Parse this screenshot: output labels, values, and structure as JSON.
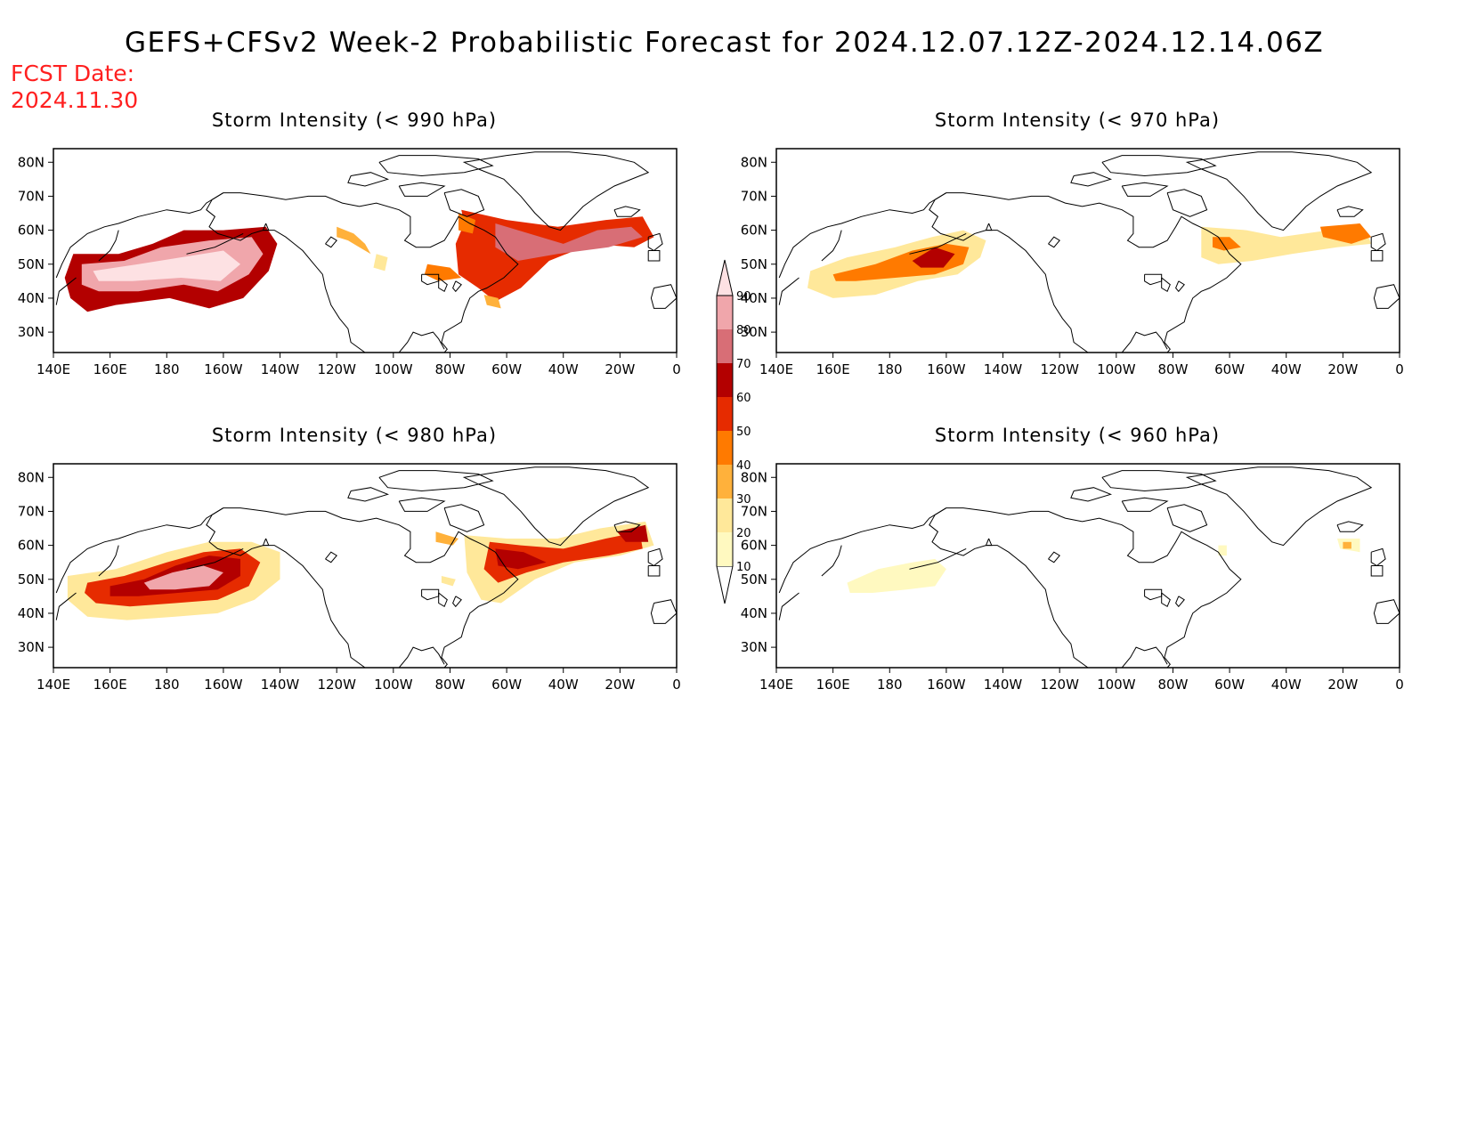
{
  "header": {
    "title": "GEFS+CFSv2 Week-2 Probabilistic Forecast for 2024.12.07.12Z-2024.12.14.06Z",
    "fcst_label": "FCST Date:",
    "fcst_date": "2024.11.30"
  },
  "colors": {
    "title_red": "#ff2020",
    "levels": [
      "#fff9c0",
      "#ffe89a",
      "#ffb13b",
      "#ff7a00",
      "#e62b00",
      "#b30000",
      "#d86e76",
      "#f0a6ab",
      "#fde1e3"
    ]
  },
  "colorbar": {
    "labels": [
      "10",
      "20",
      "30",
      "40",
      "50",
      "60",
      "70",
      "80",
      "90"
    ]
  },
  "axes": {
    "lon_labels": [
      "140E",
      "160E",
      "180",
      "160W",
      "140W",
      "120W",
      "100W",
      "80W",
      "60W",
      "40W",
      "20W",
      "0"
    ],
    "lat_labels": [
      "80N",
      "70N",
      "60N",
      "50N",
      "40N",
      "30N"
    ]
  },
  "panels": [
    {
      "id": "p990",
      "title": "Storm Intensity (< 990 hPa)",
      "regions": [
        {
          "level": 5,
          "lonlat": [
            [
              147,
              53
            ],
            [
              163,
              53
            ],
            [
              175,
              56
            ],
            [
              186,
              60
            ],
            [
              200,
              60
            ],
            [
              215,
              61
            ],
            [
              219,
              56
            ],
            [
              216,
              48
            ],
            [
              207,
              40
            ],
            [
              195,
              37
            ],
            [
              181,
              40
            ],
            [
              162,
              38
            ],
            [
              152,
              36
            ],
            [
              146,
              40
            ],
            [
              144,
              46
            ]
          ]
        },
        {
          "level": 7,
          "lonlat": [
            [
              150,
              50
            ],
            [
              165,
              51
            ],
            [
              178,
              55
            ],
            [
              195,
              57
            ],
            [
              210,
              58
            ],
            [
              214,
              53
            ],
            [
              209,
              47
            ],
            [
              198,
              42
            ],
            [
              186,
              44
            ],
            [
              170,
              42
            ],
            [
              156,
              42
            ],
            [
              150,
              44
            ]
          ]
        },
        {
          "level": 8,
          "lonlat": [
            [
              154,
              48
            ],
            [
              170,
              50
            ],
            [
              185,
              52
            ],
            [
              200,
              54
            ],
            [
              206,
              50
            ],
            [
              199,
              45
            ],
            [
              185,
              46
            ],
            [
              168,
              45
            ],
            [
              156,
              45
            ]
          ]
        },
        {
          "level": 4,
          "lonlat": [
            [
              284,
              66
            ],
            [
              300,
              63
            ],
            [
              318,
              61
            ],
            [
              335,
              63
            ],
            [
              348,
              64
            ],
            [
              352,
              58
            ],
            [
              345,
              55
            ],
            [
              330,
              56
            ],
            [
              315,
              51
            ],
            [
              305,
              43
            ],
            [
              296,
              39
            ],
            [
              290,
              43
            ],
            [
              283,
              47
            ],
            [
              282,
              56
            ],
            [
              285,
              62
            ]
          ]
        },
        {
          "level": 6,
          "lonlat": [
            [
              296,
              62
            ],
            [
              312,
              58
            ],
            [
              320,
              56
            ],
            [
              332,
              60
            ],
            [
              344,
              61
            ],
            [
              348,
              58
            ],
            [
              336,
              55
            ],
            [
              318,
              53
            ],
            [
              304,
              51
            ],
            [
              296,
              55
            ]
          ]
        },
        {
          "level": 3,
          "lonlat": [
            [
              283,
              65
            ],
            [
              289,
              63
            ],
            [
              288,
              59
            ],
            [
              283,
              60
            ]
          ]
        },
        {
          "level": 2,
          "lonlat": [
            [
              240,
              61
            ],
            [
              246,
              59
            ],
            [
              250,
              56
            ],
            [
              252,
              53
            ],
            [
              248,
              55
            ],
            [
              244,
              57
            ],
            [
              240,
              58
            ]
          ]
        },
        {
          "level": 1,
          "lonlat": [
            [
              254,
              53
            ],
            [
              258,
              52
            ],
            [
              257,
              48
            ],
            [
              253,
              49
            ]
          ]
        },
        {
          "level": 3,
          "lonlat": [
            [
              272,
              50
            ],
            [
              280,
              49
            ],
            [
              284,
              46
            ],
            [
              276,
              45
            ],
            [
              271,
              47
            ]
          ]
        },
        {
          "level": 2,
          "lonlat": [
            [
              292,
              41
            ],
            [
              297,
              40
            ],
            [
              298,
              37
            ],
            [
              293,
              38
            ]
          ]
        }
      ]
    },
    {
      "id": "p970",
      "title": "Storm Intensity (< 970 hPa)",
      "regions": [
        {
          "level": 1,
          "lonlat": [
            [
              152,
              48
            ],
            [
              165,
              52
            ],
            [
              182,
              55
            ],
            [
              195,
              58
            ],
            [
              206,
              60
            ],
            [
              214,
              57
            ],
            [
              212,
              52
            ],
            [
              204,
              47
            ],
            [
              190,
              45
            ],
            [
              175,
              41
            ],
            [
              160,
              40
            ],
            [
              151,
              43
            ]
          ]
        },
        {
          "level": 3,
          "lonlat": [
            [
              160,
              47
            ],
            [
              175,
              50
            ],
            [
              188,
              54
            ],
            [
              200,
              56
            ],
            [
              208,
              55
            ],
            [
              206,
              50
            ],
            [
              196,
              47
            ],
            [
              182,
              46
            ],
            [
              168,
              45
            ],
            [
              161,
              45
            ]
          ]
        },
        {
          "level": 5,
          "lonlat": [
            [
              188,
              51
            ],
            [
              196,
              55
            ],
            [
              203,
              53
            ],
            [
              199,
              49
            ],
            [
              191,
              49
            ]
          ]
        },
        {
          "level": 1,
          "lonlat": [
            [
              290,
              61
            ],
            [
              306,
              60
            ],
            [
              318,
              58
            ],
            [
              335,
              60
            ],
            [
              348,
              60
            ],
            [
              350,
              56
            ],
            [
              338,
              55
            ],
            [
              322,
              53
            ],
            [
              308,
              51
            ],
            [
              296,
              50
            ],
            [
              290,
              52
            ]
          ]
        },
        {
          "level": 3,
          "lonlat": [
            [
              294,
              58
            ],
            [
              300,
              58
            ],
            [
              304,
              55
            ],
            [
              298,
              54
            ],
            [
              294,
              55
            ]
          ]
        },
        {
          "level": 3,
          "lonlat": [
            [
              332,
              61
            ],
            [
              346,
              62
            ],
            [
              350,
              58
            ],
            [
              343,
              56
            ],
            [
              333,
              58
            ]
          ]
        }
      ]
    },
    {
      "id": "p980",
      "title": "Storm Intensity (< 980 hPa)",
      "regions": [
        {
          "level": 1,
          "lonlat": [
            [
              145,
              51
            ],
            [
              162,
              53
            ],
            [
              180,
              58
            ],
            [
              195,
              61
            ],
            [
              210,
              61
            ],
            [
              220,
              58
            ],
            [
              220,
              50
            ],
            [
              211,
              44
            ],
            [
              198,
              40
            ],
            [
              183,
              39
            ],
            [
              166,
              38
            ],
            [
              152,
              39
            ],
            [
              145,
              44
            ]
          ]
        },
        {
          "level": 4,
          "lonlat": [
            [
              152,
              49
            ],
            [
              165,
              51
            ],
            [
              180,
              55
            ],
            [
              193,
              58
            ],
            [
              206,
              59
            ],
            [
              213,
              55
            ],
            [
              209,
              48
            ],
            [
              198,
              44
            ],
            [
              183,
              43
            ],
            [
              167,
              42
            ],
            [
              155,
              43
            ],
            [
              151,
              46
            ]
          ]
        },
        {
          "level": 5,
          "lonlat": [
            [
              160,
              48
            ],
            [
              172,
              50
            ],
            [
              183,
              54
            ],
            [
              195,
              57
            ],
            [
              206,
              56
            ],
            [
              206,
              51
            ],
            [
              198,
              47
            ],
            [
              184,
              46
            ],
            [
              170,
              45
            ],
            [
              160,
              45
            ]
          ]
        },
        {
          "level": 7,
          "lonlat": [
            [
              172,
              49
            ],
            [
              182,
              52
            ],
            [
              193,
              54
            ],
            [
              200,
              52
            ],
            [
              195,
              48
            ],
            [
              183,
              47
            ],
            [
              174,
              47
            ]
          ]
        },
        {
          "level": 1,
          "lonlat": [
            [
              285,
              63
            ],
            [
              300,
              62
            ],
            [
              318,
              62
            ],
            [
              333,
              65
            ],
            [
              349,
              67
            ],
            [
              352,
              60
            ],
            [
              340,
              57
            ],
            [
              324,
              55
            ],
            [
              310,
              50
            ],
            [
              298,
              43
            ],
            [
              291,
              44
            ],
            [
              286,
              52
            ]
          ]
        },
        {
          "level": 4,
          "lonlat": [
            [
              294,
              61
            ],
            [
              305,
              60
            ],
            [
              320,
              59
            ],
            [
              335,
              62
            ],
            [
              347,
              64
            ],
            [
              348,
              59
            ],
            [
              336,
              57
            ],
            [
              320,
              55
            ],
            [
              307,
              52
            ],
            [
              297,
              49
            ],
            [
              292,
              53
            ]
          ]
        },
        {
          "level": 5,
          "lonlat": [
            [
              296,
              59
            ],
            [
              306,
              58
            ],
            [
              314,
              55
            ],
            [
              304,
              53
            ],
            [
              297,
              54
            ]
          ]
        },
        {
          "level": 5,
          "lonlat": [
            [
              339,
              64
            ],
            [
              349,
              66
            ],
            [
              350,
              61
            ],
            [
              342,
              61
            ]
          ]
        },
        {
          "level": 2,
          "lonlat": [
            [
              275,
              64
            ],
            [
              283,
              62
            ],
            [
              281,
              60
            ],
            [
              275,
              61
            ]
          ]
        },
        {
          "level": 1,
          "lonlat": [
            [
              277,
              51
            ],
            [
              282,
              50
            ],
            [
              281,
              48
            ],
            [
              277,
              49
            ]
          ]
        }
      ]
    },
    {
      "id": "p960",
      "title": "Storm Intensity (< 960 hPa)",
      "regions": [
        {
          "level": 0,
          "lonlat": [
            [
              165,
              49
            ],
            [
              176,
              53
            ],
            [
              188,
              55
            ],
            [
              196,
              56
            ],
            [
              200,
              53
            ],
            [
              196,
              48
            ],
            [
              186,
              47
            ],
            [
              174,
              46
            ],
            [
              166,
              46
            ]
          ]
        },
        {
          "level": 0,
          "lonlat": [
            [
              338,
              62
            ],
            [
              346,
              62
            ],
            [
              346,
              58
            ],
            [
              339,
              59
            ]
          ]
        },
        {
          "level": 2,
          "lonlat": [
            [
              340,
              61
            ],
            [
              343,
              61
            ],
            [
              343,
              59
            ],
            [
              340,
              59
            ]
          ]
        },
        {
          "level": 0,
          "lonlat": [
            [
              296,
              60
            ],
            [
              299,
              60
            ],
            [
              299,
              57
            ],
            [
              296,
              57
            ]
          ]
        }
      ]
    }
  ]
}
